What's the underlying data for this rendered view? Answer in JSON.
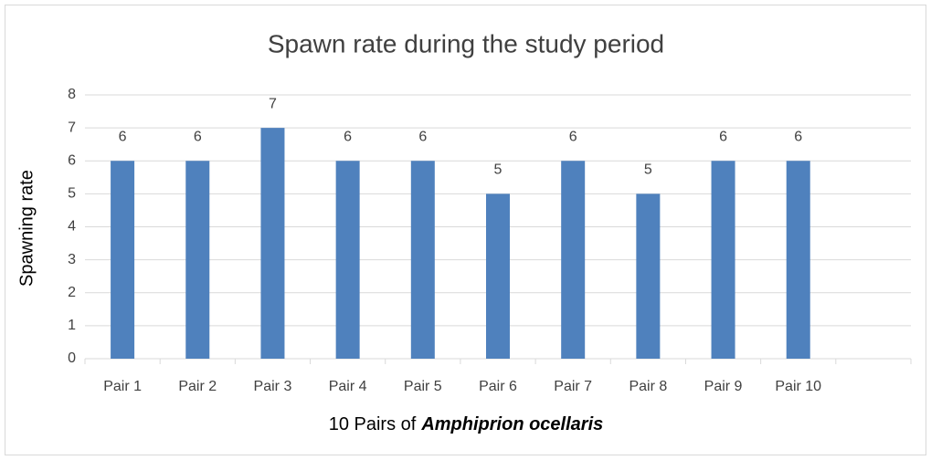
{
  "chart_data": {
    "type": "bar",
    "title": "Spawn rate during the study period",
    "xlabel": [
      "10 Pairs of",
      "Amphiprion ocellaris"
    ],
    "ylabel": "Spawning rate",
    "categories": [
      "Pair 1",
      "Pair 2",
      "Pair 3",
      "Pair 4",
      "Pair 5",
      "Pair 6",
      "Pair 7",
      "Pair 8",
      "Pair 9",
      "Pair 10",
      null
    ],
    "values": [
      6,
      6,
      7,
      6,
      6,
      5,
      6,
      5,
      6,
      6,
      null
    ],
    "color": "#4f81bd",
    "ylim": [
      0,
      8
    ],
    "yticks": [
      0,
      1,
      2,
      3,
      4,
      5,
      6,
      7,
      8
    ],
    "grid": true
  }
}
